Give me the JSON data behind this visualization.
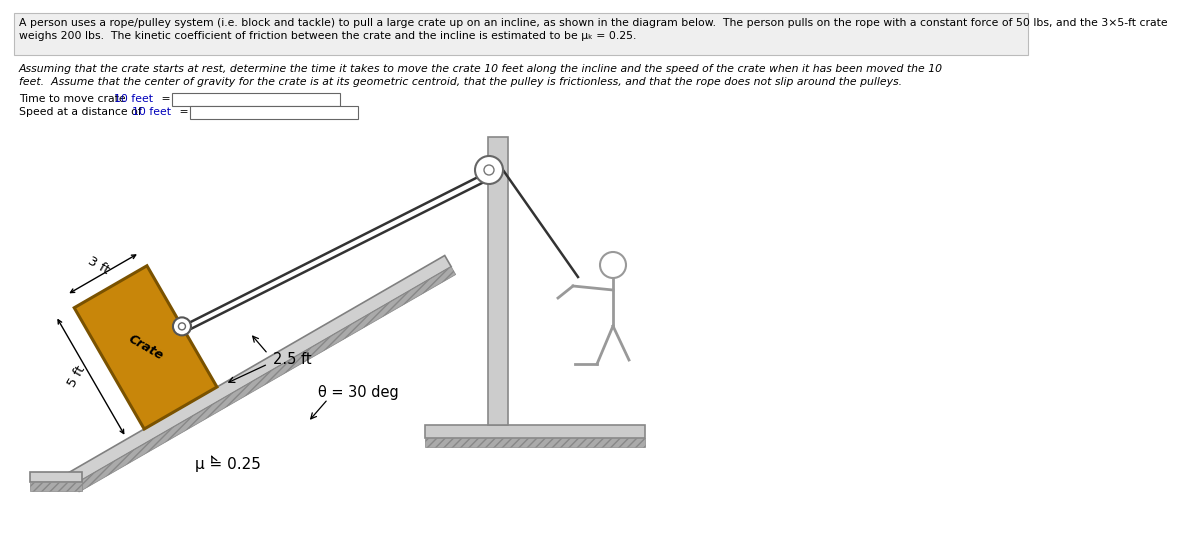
{
  "bg_color": "#ffffff",
  "text_color": "#000000",
  "blue_text": "#0000bb",
  "crate_color": "#c8860a",
  "crate_dark": "#7a5200",
  "incline_gray": "#d0d0d0",
  "incline_edge": "#808080",
  "pole_gray": "#cccccc",
  "theta_deg": 30,
  "text1a": "A person uses a rope/pulley system (i.e. block and tackle) to pull a large crate up on an incline, as shown in the diagram below.  The person pulls on the rope with a constant force of 50 lbs, and the 3×5-ft crate",
  "text1b": "weighs 200 lbs.  The kinetic coefficient of friction between the crate and the incline is estimated to be μₖ = 0.25.",
  "text2a": "Assuming that the crate starts at rest, determine the time it takes to move the crate 10 feet along the incline and the speed of the crate when it has been moved the 10",
  "text2b": "feet.  Assume that the center of gravity for the crate is at its geometric centroid, that the pulley is frictionless, and that the rope does not slip around the pulleys.",
  "label_time_pre": "Time to move crate ",
  "label_time_blue": "10 feet",
  "label_time_post": " =",
  "label_speed_pre": "Speed at a distance of ",
  "label_speed_blue": "10 feet",
  "label_speed_post": " =",
  "label_3ft": "3 ft",
  "label_5ft": "5 ft",
  "label_25ft": "2.5 ft",
  "label_crate": "Crate",
  "label_theta": "θ = 30 deg",
  "label_mu": "μ = 0.25",
  "rope_color": "#333333",
  "stick_color": "#999999"
}
